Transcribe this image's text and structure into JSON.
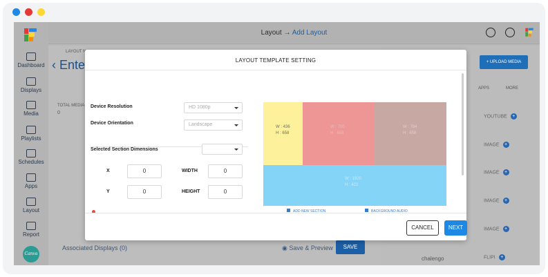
{
  "window": {
    "dots": [
      "#1e88e5",
      "#e53935",
      "#fdd835"
    ]
  },
  "header": {
    "crumb_root": "Layout",
    "crumb_arrow": "→",
    "crumb_current": "Add Layout",
    "icons": [
      "brightness-icon",
      "gear-icon",
      "brand-logo-icon"
    ]
  },
  "sidebar": {
    "items": [
      {
        "label": "Dashboard",
        "icon": "dashboard-icon"
      },
      {
        "label": "Displays",
        "icon": "monitor-icon"
      },
      {
        "label": "Media",
        "icon": "media-icon"
      },
      {
        "label": "Playlists",
        "icon": "playlist-icon"
      },
      {
        "label": "Schedules",
        "icon": "calendar-icon"
      },
      {
        "label": "Apps",
        "icon": "apps-icon"
      },
      {
        "label": "Layout",
        "icon": "layout-icon"
      },
      {
        "label": "Report",
        "icon": "chart-icon"
      }
    ],
    "canva_label": "Canva"
  },
  "background": {
    "layout_label": "LAYOUT N",
    "title_fragment": "Ente",
    "total_label": "TOTAL MEDIA",
    "total_value": "0",
    "upload_label": "+ UPLOAD MEDIA",
    "columns": [
      "APPS",
      "MORE"
    ],
    "rows": [
      "YOUTUBE",
      "IMAGE",
      "IMAGE",
      "IMAGE",
      "IMAGE",
      "FLIPI"
    ],
    "associated": "Associated Displays (0)",
    "save_preview": "Save & Preview",
    "save": "SAVE",
    "bottom_item": "chalengo"
  },
  "modal": {
    "title": "LAYOUT TEMPLATE SETTING",
    "device_resolution_label": "Device Resolution",
    "device_resolution_value": "HD 1080p",
    "device_orientation_label": "Device Orientation",
    "device_orientation_value": "Landscape",
    "section_dimensions_label": "Selected Section Dimensions",
    "section_dimensions_value": "",
    "x_label": "X",
    "x_value": "0",
    "width_label": "WIDTH",
    "width_value": "0",
    "y_label": "Y",
    "y_value": "0",
    "height_label": "HEIGHT",
    "height_value": "0",
    "regions": [
      {
        "w": "W : 436",
        "h": "H : 658",
        "color": "#fdf29b",
        "text_color": "#6a6a6a"
      },
      {
        "w": "W : 700",
        "h": "H : 658",
        "color": "#ee9696",
        "text_color": "#e4bcbc"
      },
      {
        "w": "W : 784",
        "h": "H : 658",
        "color": "#c8a8a2",
        "text_color": "#ddd0cc"
      },
      {
        "w": "W : 1920",
        "h": "H : 422",
        "color": "#84d4f8",
        "text_color": "#cfeaf8"
      }
    ],
    "add_section_label": "ADD NEW SECTION",
    "background_audio_label": "BACKGROUND AUDIO",
    "cancel": "CANCEL",
    "next": "NEXT"
  }
}
